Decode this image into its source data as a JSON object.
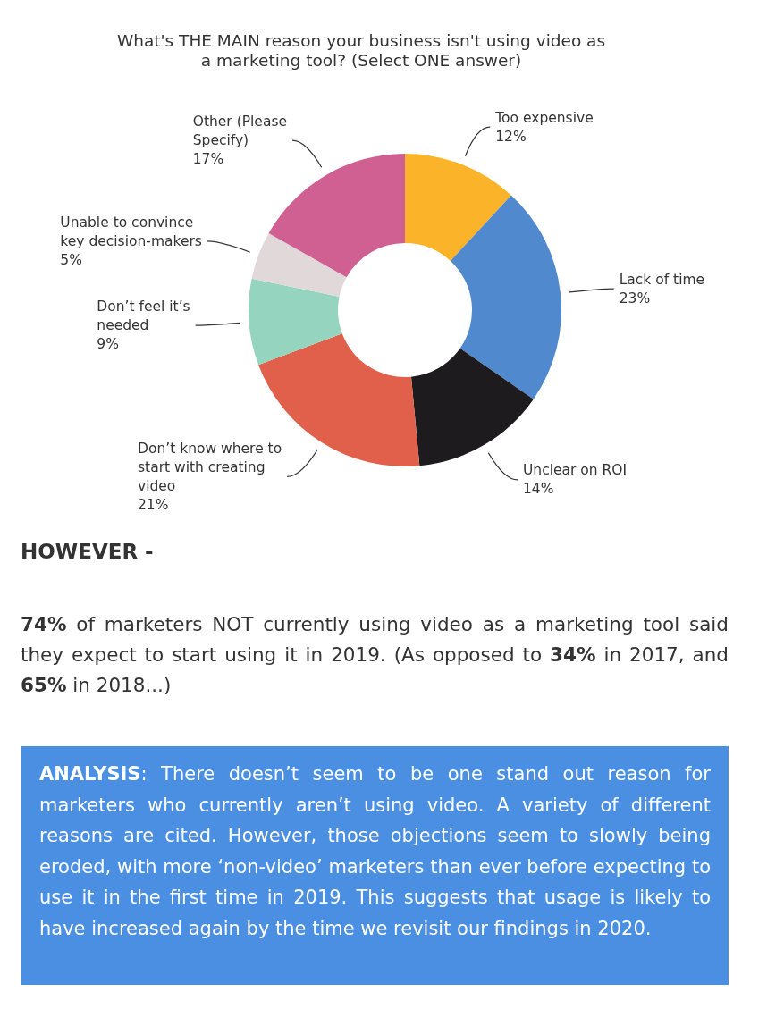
{
  "chart_data": {
    "type": "donut",
    "title": "What's THE MAIN reason your business isn't using video as a marketing tool? (Select ONE answer)",
    "categories": [
      "Too expensive",
      "Lack of time",
      "Unclear on ROI",
      "Don’t know where to start with creating video",
      "Don’t feel it’s needed",
      "Unable to convince key decision-makers",
      "Other (Please Specify)"
    ],
    "values": [
      12,
      23,
      14,
      21,
      9,
      5,
      17
    ],
    "colors": [
      "#fbb42a",
      "#5189cf",
      "#1e1b1e",
      "#e0604b",
      "#95d5c0",
      "#e1d8da",
      "#d05f92"
    ],
    "value_labels": [
      "12%",
      "23%",
      "14%",
      "21%",
      "9%",
      "5%",
      "17%"
    ],
    "annotations": [
      "HOWEVER -",
      "74% of marketers NOT currently using video as a marketing tool said they expect to start using it in 2019. (As opposed to 34% in 2017, and 65% in 2018...)",
      "ANALYSIS: There doesn’t seem to be one stand out reason for marketers who currently aren’t using video. A variety of different reasons are cited. However, those objections seem to slowly being eroded, with more ‘non-video’ marketers than ever before expecting to use it in the first time in 2019. This suggests that usage is likely to have increased again by the time we revisit our findings in 2020."
    ]
  }
}
